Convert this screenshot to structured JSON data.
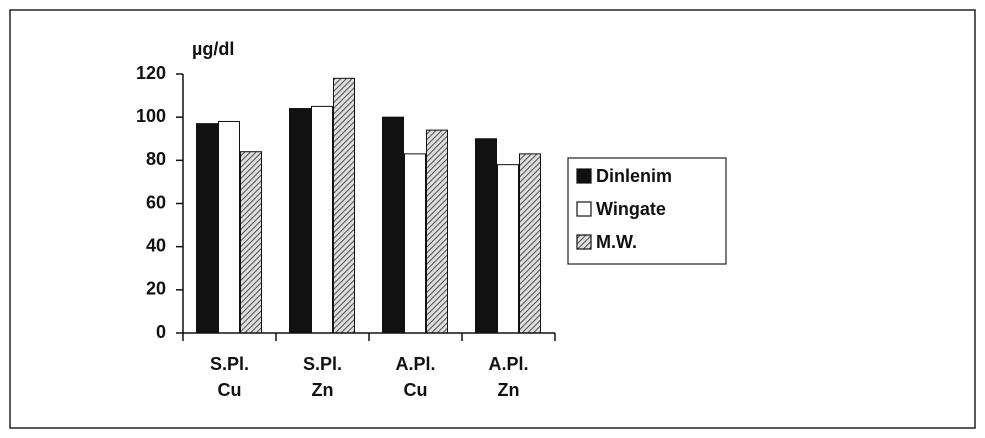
{
  "chart_data": {
    "type": "bar",
    "y_label": "µg/dl",
    "categories": [
      "S.Pl. Cu",
      "S.Pl. Zn",
      "A.Pl. Cu",
      "A.Pl. Zn"
    ],
    "series": [
      {
        "name": "Dinlenim",
        "color": "#111111",
        "values": [
          97,
          104,
          100,
          90
        ]
      },
      {
        "name": "Wingate",
        "color": "#ffffff",
        "values": [
          98,
          105,
          83,
          78
        ]
      },
      {
        "name": "M.W.",
        "color": "#777777",
        "hatch": true,
        "values": [
          84,
          118,
          94,
          83
        ]
      }
    ],
    "ylim": [
      0,
      120
    ],
    "yticks": [
      0,
      20,
      40,
      60,
      80,
      100,
      120
    ],
    "grid": false,
    "legend": "right"
  }
}
